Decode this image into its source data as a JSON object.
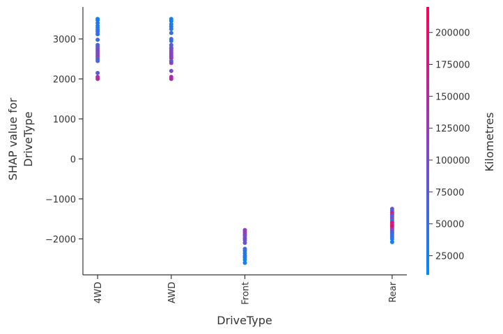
{
  "chart_data": {
    "type": "scatter",
    "title": "",
    "xlabel": "DriveType",
    "ylabel_lines": [
      "SHAP value for",
      "DriveType"
    ],
    "categories": [
      "4WD",
      "AWD",
      "Front",
      "Rear"
    ],
    "category_positions": [
      0,
      1,
      2,
      4
    ],
    "xlim": [
      -0.2,
      4.2
    ],
    "ylim": [
      -2900,
      3800
    ],
    "yticks": [
      -2000,
      -1000,
      0,
      1000,
      2000,
      3000
    ],
    "ytick_labels": [
      "−2000",
      "−1000",
      "0",
      "1000",
      "2000",
      "3000"
    ],
    "colorbar": {
      "label": "Kilometres",
      "min": 10000,
      "max": 220000,
      "ticks": [
        25000,
        50000,
        75000,
        100000,
        125000,
        150000,
        175000,
        200000
      ],
      "tick_labels": [
        "25000",
        "50000",
        "75000",
        "100000",
        "125000",
        "150000",
        "175000",
        "200000"
      ],
      "colors": [
        "#008afb",
        "#8f3fc4",
        "#ff0052"
      ]
    },
    "points": [
      {
        "x": "4WD",
        "y": 3500,
        "km": 20000
      },
      {
        "x": "4WD",
        "y": 3470,
        "km": 25000
      },
      {
        "x": "4WD",
        "y": 3400,
        "km": 35000
      },
      {
        "x": "4WD",
        "y": 3330,
        "km": 30000
      },
      {
        "x": "4WD",
        "y": 3280,
        "km": 40000
      },
      {
        "x": "4WD",
        "y": 3230,
        "km": 35000
      },
      {
        "x": "4WD",
        "y": 3180,
        "km": 45000
      },
      {
        "x": "4WD",
        "y": 3120,
        "km": 50000
      },
      {
        "x": "4WD",
        "y": 2980,
        "km": 55000
      },
      {
        "x": "4WD",
        "y": 2850,
        "km": 60000
      },
      {
        "x": "4WD",
        "y": 2800,
        "km": 90000
      },
      {
        "x": "4WD",
        "y": 2750,
        "km": 85000
      },
      {
        "x": "4WD",
        "y": 2700,
        "km": 100000
      },
      {
        "x": "4WD",
        "y": 2650,
        "km": 110000
      },
      {
        "x": "4WD",
        "y": 2600,
        "km": 95000
      },
      {
        "x": "4WD",
        "y": 2550,
        "km": 120000
      },
      {
        "x": "4WD",
        "y": 2500,
        "km": 70000
      },
      {
        "x": "4WD",
        "y": 2450,
        "km": 60000
      },
      {
        "x": "4WD",
        "y": 2150,
        "km": 80000
      },
      {
        "x": "4WD",
        "y": 2050,
        "km": 140000
      },
      {
        "x": "4WD",
        "y": 2000,
        "km": 150000
      },
      {
        "x": "AWD",
        "y": 3500,
        "km": 20000
      },
      {
        "x": "AWD",
        "y": 3450,
        "km": 25000
      },
      {
        "x": "AWD",
        "y": 3370,
        "km": 30000
      },
      {
        "x": "AWD",
        "y": 3310,
        "km": 35000
      },
      {
        "x": "AWD",
        "y": 3250,
        "km": 40000
      },
      {
        "x": "AWD",
        "y": 3150,
        "km": 45000
      },
      {
        "x": "AWD",
        "y": 3000,
        "km": 55000
      },
      {
        "x": "AWD",
        "y": 2950,
        "km": 50000
      },
      {
        "x": "AWD",
        "y": 2850,
        "km": 70000
      },
      {
        "x": "AWD",
        "y": 2780,
        "km": 80000
      },
      {
        "x": "AWD",
        "y": 2750,
        "km": 90000
      },
      {
        "x": "AWD",
        "y": 2700,
        "km": 100000
      },
      {
        "x": "AWD",
        "y": 2650,
        "km": 110000
      },
      {
        "x": "AWD",
        "y": 2600,
        "km": 120000
      },
      {
        "x": "AWD",
        "y": 2560,
        "km": 95000
      },
      {
        "x": "AWD",
        "y": 2520,
        "km": 130000
      },
      {
        "x": "AWD",
        "y": 2450,
        "km": 60000
      },
      {
        "x": "AWD",
        "y": 2400,
        "km": 110000
      },
      {
        "x": "AWD",
        "y": 2200,
        "km": 100000
      },
      {
        "x": "AWD",
        "y": 2050,
        "km": 140000
      },
      {
        "x": "AWD",
        "y": 2000,
        "km": 150000
      },
      {
        "x": "Front",
        "y": -1780,
        "km": 120000
      },
      {
        "x": "Front",
        "y": -1830,
        "km": 110000
      },
      {
        "x": "Front",
        "y": -1880,
        "km": 130000
      },
      {
        "x": "Front",
        "y": -1920,
        "km": 100000
      },
      {
        "x": "Front",
        "y": -1980,
        "km": 90000
      },
      {
        "x": "Front",
        "y": -2030,
        "km": 95000
      },
      {
        "x": "Front",
        "y": -2100,
        "km": 85000
      },
      {
        "x": "Front",
        "y": -2250,
        "km": 50000
      },
      {
        "x": "Front",
        "y": -2300,
        "km": 45000
      },
      {
        "x": "Front",
        "y": -2360,
        "km": 40000
      },
      {
        "x": "Front",
        "y": -2420,
        "km": 35000
      },
      {
        "x": "Front",
        "y": -2460,
        "km": 30000
      },
      {
        "x": "Front",
        "y": -2520,
        "km": 25000
      },
      {
        "x": "Front",
        "y": -2600,
        "km": 20000
      },
      {
        "x": "Rear",
        "y": -1250,
        "km": 90000
      },
      {
        "x": "Rear",
        "y": -1300,
        "km": 60000
      },
      {
        "x": "Rear",
        "y": -1350,
        "km": 170000
      },
      {
        "x": "Rear",
        "y": -1400,
        "km": 130000
      },
      {
        "x": "Rear",
        "y": -1450,
        "km": 50000
      },
      {
        "x": "Rear",
        "y": -1500,
        "km": 110000
      },
      {
        "x": "Rear",
        "y": -1550,
        "km": 40000
      },
      {
        "x": "Rear",
        "y": -1600,
        "km": 200000
      },
      {
        "x": "Rear",
        "y": -1650,
        "km": 160000
      },
      {
        "x": "Rear",
        "y": -1700,
        "km": 210000
      },
      {
        "x": "Rear",
        "y": -1750,
        "km": 140000
      },
      {
        "x": "Rear",
        "y": -1800,
        "km": 80000
      },
      {
        "x": "Rear",
        "y": -1850,
        "km": 70000
      },
      {
        "x": "Rear",
        "y": -1900,
        "km": 45000
      },
      {
        "x": "Rear",
        "y": -1950,
        "km": 55000
      },
      {
        "x": "Rear",
        "y": -2000,
        "km": 30000
      },
      {
        "x": "Rear",
        "y": -2080,
        "km": 25000
      }
    ]
  }
}
